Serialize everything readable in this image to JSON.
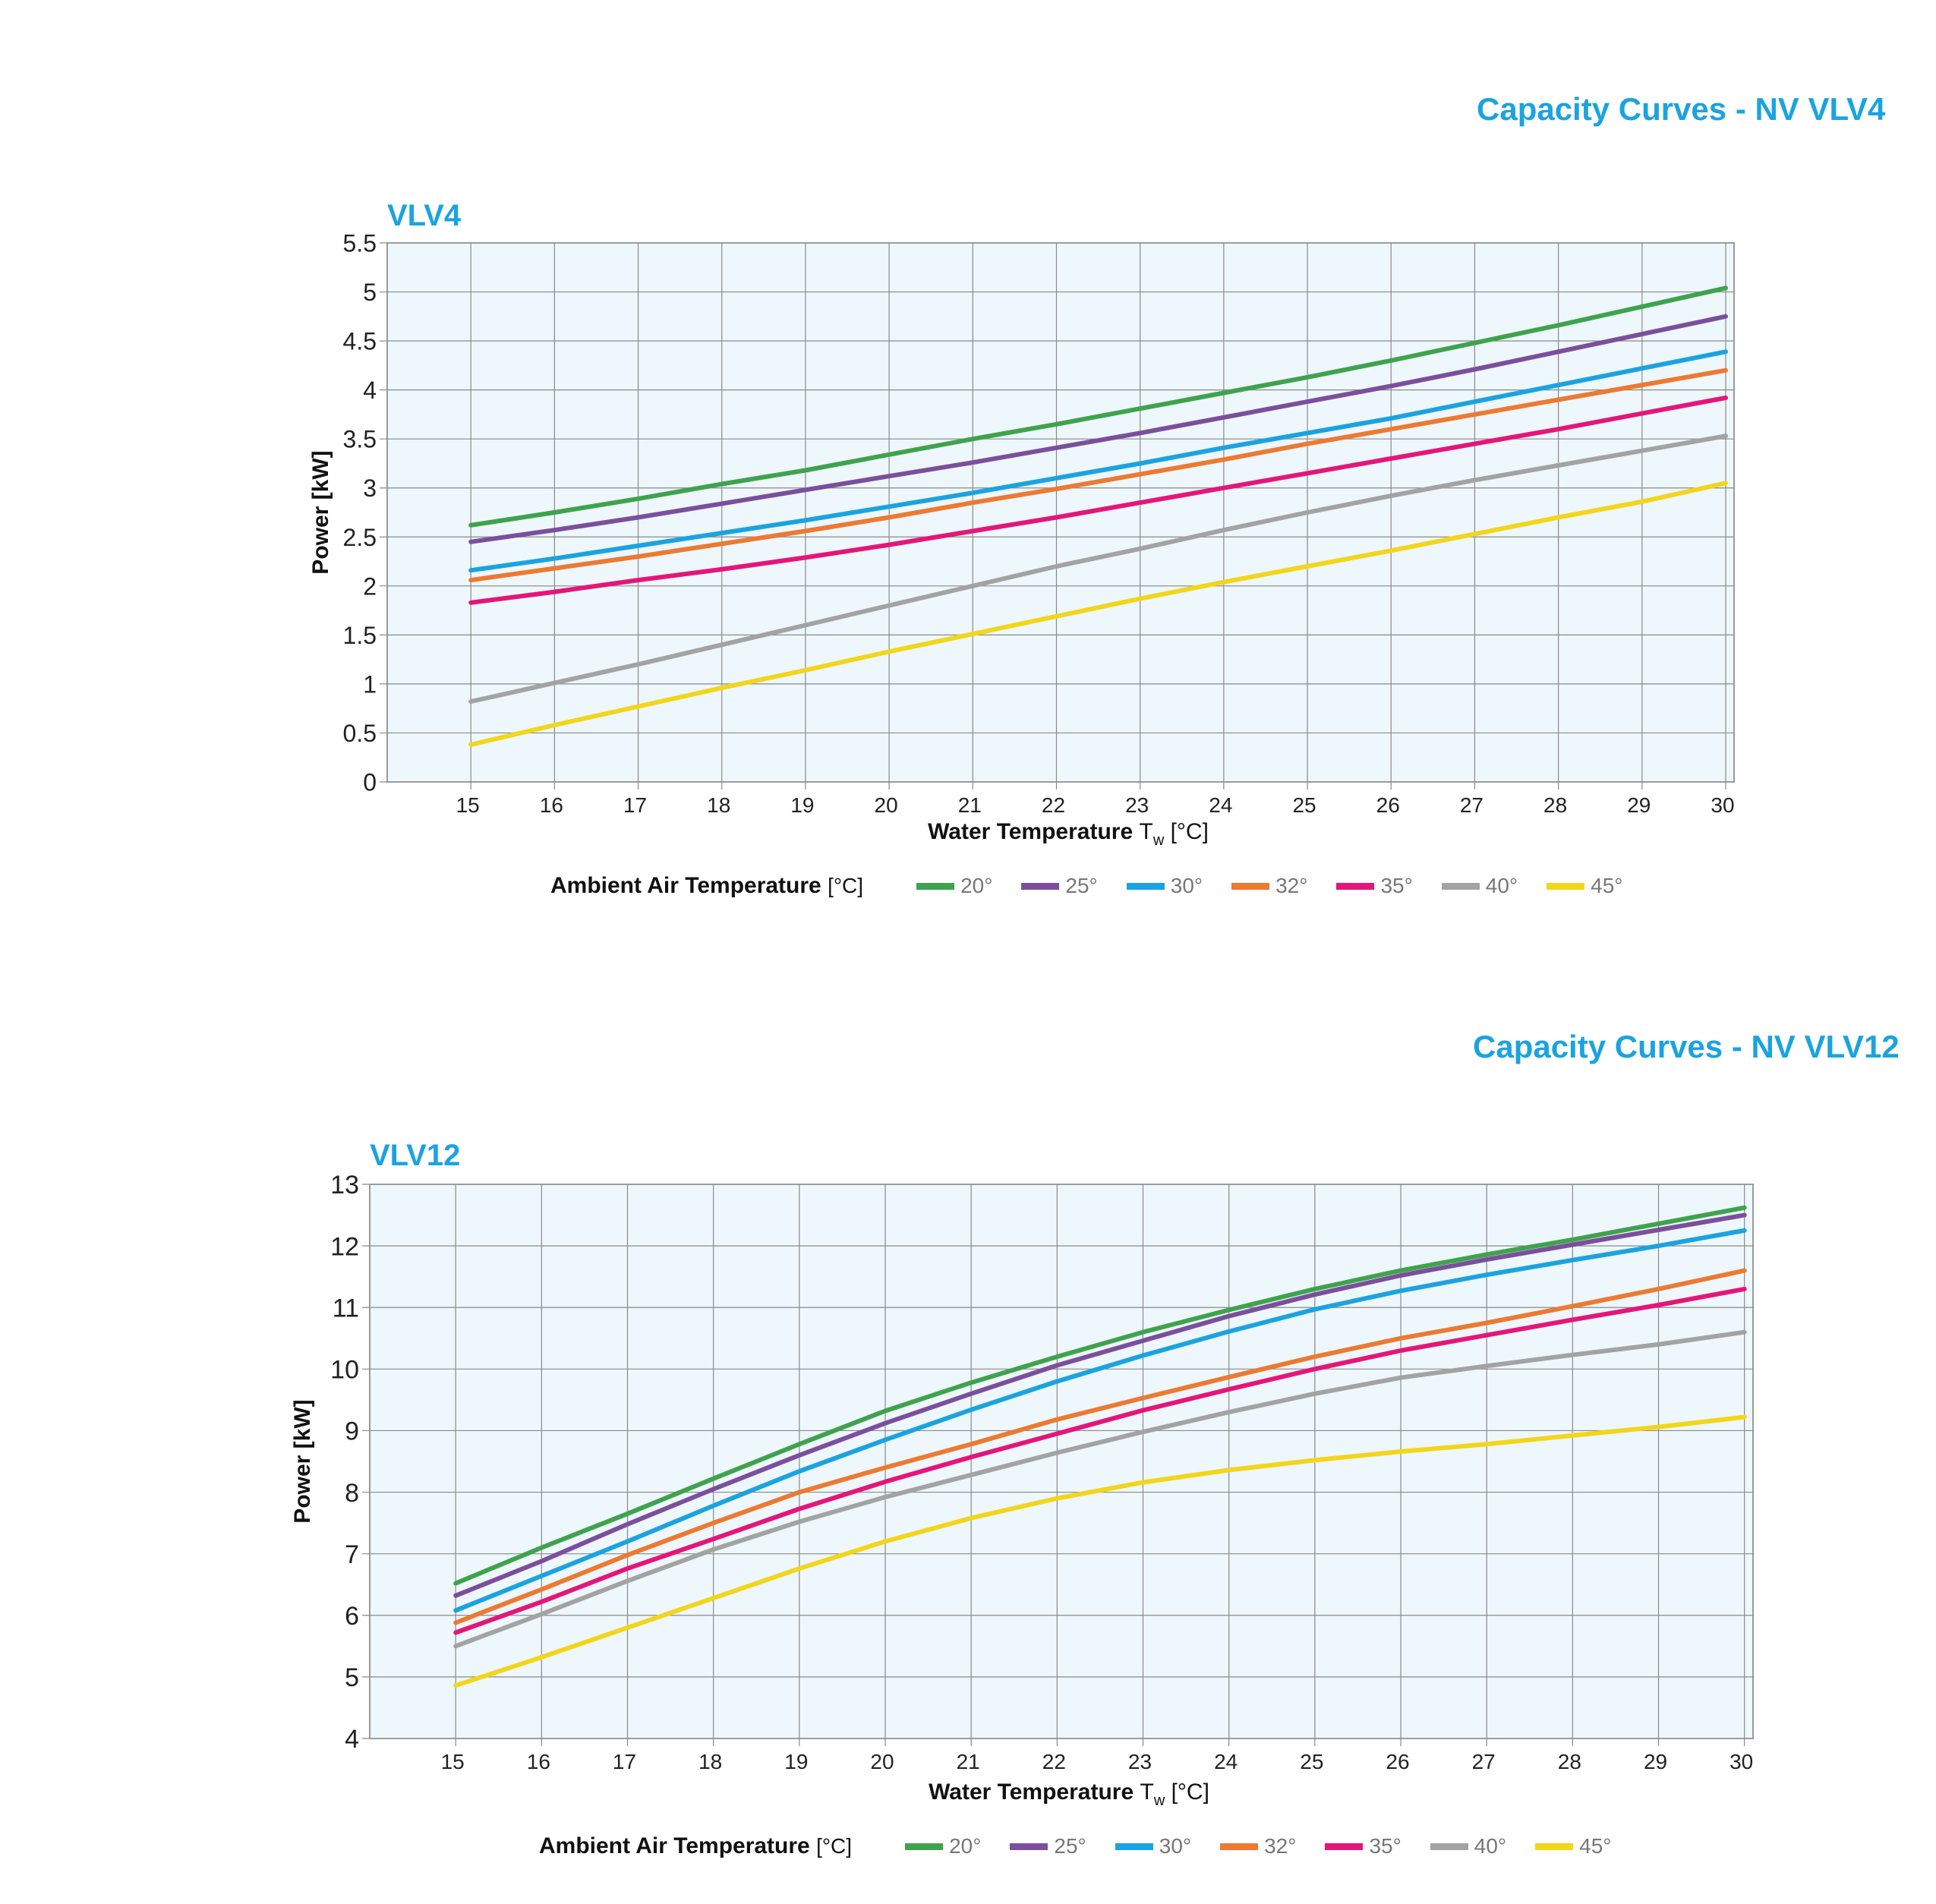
{
  "chart_data": [
    {
      "type": "line",
      "section_title": "Capacity Curves - NV VLV4",
      "title": "VLV4",
      "xlabel": "Water Temperature",
      "xlabel_symbol": "T",
      "xlabel_sub": "w",
      "xlabel_unit": "[°C]",
      "ylabel": "Power [kW]",
      "x": [
        15,
        16,
        17,
        18,
        19,
        20,
        21,
        22,
        23,
        24,
        25,
        26,
        27,
        28,
        29,
        30
      ],
      "xlim": [
        14,
        30.1
      ],
      "ylim": [
        0,
        5.5
      ],
      "yticks": [
        0,
        0.5,
        1,
        1.5,
        2,
        2.5,
        3,
        3.5,
        4,
        4.5,
        5,
        5.5
      ],
      "ytick_labels": [
        "0",
        "0.5",
        "1",
        "1.5",
        "2",
        "2.5",
        "3",
        "3.5",
        "4",
        "4.5",
        "5",
        "5.5"
      ],
      "grid": true,
      "legend_title": "Ambient Air Temperature",
      "legend_unit": "[°C]",
      "legend_position": "bottom",
      "series": [
        {
          "name": "20°",
          "color": "#3fa34d",
          "values": [
            2.62,
            2.75,
            2.89,
            3.04,
            3.18,
            3.34,
            3.5,
            3.65,
            3.81,
            3.97,
            4.13,
            4.3,
            4.48,
            4.66,
            4.85,
            5.04
          ]
        },
        {
          "name": "25°",
          "color": "#7b4f9d",
          "values": [
            2.45,
            2.57,
            2.7,
            2.84,
            2.98,
            3.12,
            3.26,
            3.41,
            3.56,
            3.72,
            3.88,
            4.04,
            4.21,
            4.39,
            4.57,
            4.75
          ]
        },
        {
          "name": "30°",
          "color": "#1ba3e0",
          "values": [
            2.16,
            2.28,
            2.41,
            2.54,
            2.67,
            2.81,
            2.95,
            3.1,
            3.25,
            3.41,
            3.56,
            3.71,
            3.88,
            4.05,
            4.22,
            4.39
          ]
        },
        {
          "name": "32°",
          "color": "#ec7a32",
          "values": [
            2.06,
            2.18,
            2.3,
            2.43,
            2.56,
            2.7,
            2.85,
            2.99,
            3.14,
            3.29,
            3.45,
            3.6,
            3.75,
            3.9,
            4.05,
            4.2
          ]
        },
        {
          "name": "35°",
          "color": "#e5157a",
          "values": [
            1.83,
            1.94,
            2.06,
            2.17,
            2.29,
            2.42,
            2.56,
            2.7,
            2.85,
            3.0,
            3.15,
            3.3,
            3.45,
            3.6,
            3.76,
            3.92
          ]
        },
        {
          "name": "40°",
          "color": "#a3a3a3",
          "values": [
            0.82,
            1.01,
            1.2,
            1.4,
            1.6,
            1.8,
            2.0,
            2.2,
            2.38,
            2.57,
            2.75,
            2.92,
            3.08,
            3.23,
            3.38,
            3.53
          ]
        },
        {
          "name": "45°",
          "color": "#f2d61a",
          "values": [
            0.38,
            0.58,
            0.77,
            0.96,
            1.14,
            1.33,
            1.51,
            1.69,
            1.87,
            2.04,
            2.2,
            2.36,
            2.53,
            2.7,
            2.86,
            3.05
          ]
        }
      ]
    },
    {
      "type": "line",
      "section_title": "Capacity Curves - NV VLV12",
      "title": "VLV12",
      "xlabel": "Water Temperature",
      "xlabel_symbol": "T",
      "xlabel_sub": "w",
      "xlabel_unit": "[°C]",
      "ylabel": "Power [kW]",
      "x": [
        15,
        16,
        17,
        18,
        19,
        20,
        21,
        22,
        23,
        24,
        25,
        26,
        27,
        28,
        29,
        30
      ],
      "xlim": [
        14,
        30.1
      ],
      "ylim": [
        4,
        13
      ],
      "yticks": [
        4,
        5,
        6,
        7,
        8,
        9,
        10,
        11,
        12,
        13
      ],
      "ytick_labels": [
        "4",
        "5",
        "6",
        "7",
        "8",
        "9",
        "10",
        "11",
        "12",
        "13"
      ],
      "grid": true,
      "legend_title": "Ambient Air Temperature",
      "legend_unit": "[°C]",
      "legend_position": "bottom",
      "series": [
        {
          "name": "20°",
          "color": "#3fa34d",
          "values": [
            6.52,
            7.1,
            7.65,
            8.22,
            8.78,
            9.32,
            9.78,
            10.2,
            10.6,
            10.96,
            11.3,
            11.6,
            11.86,
            12.1,
            12.36,
            12.62
          ]
        },
        {
          "name": "25°",
          "color": "#7b4f9d",
          "values": [
            6.32,
            6.88,
            7.48,
            8.05,
            8.6,
            9.12,
            9.6,
            10.06,
            10.46,
            10.86,
            11.21,
            11.52,
            11.78,
            12.02,
            12.26,
            12.5
          ]
        },
        {
          "name": "30°",
          "color": "#1ba3e0",
          "values": [
            6.08,
            6.64,
            7.2,
            7.78,
            8.34,
            8.85,
            9.34,
            9.8,
            10.22,
            10.61,
            10.97,
            11.27,
            11.53,
            11.77,
            12.0,
            12.25
          ]
        },
        {
          "name": "32°",
          "color": "#ec7a32",
          "values": [
            5.88,
            6.42,
            6.98,
            7.5,
            8.0,
            8.4,
            8.78,
            9.18,
            9.53,
            9.87,
            10.2,
            10.5,
            10.75,
            11.02,
            11.3,
            11.6
          ]
        },
        {
          "name": "35°",
          "color": "#e5157a",
          "values": [
            5.72,
            6.22,
            6.76,
            7.24,
            7.73,
            8.17,
            8.57,
            8.95,
            9.33,
            9.67,
            10.0,
            10.3,
            10.55,
            10.8,
            11.04,
            11.3
          ]
        },
        {
          "name": "40°",
          "color": "#a3a3a3",
          "values": [
            5.5,
            6.02,
            6.56,
            7.07,
            7.52,
            7.92,
            8.28,
            8.64,
            8.98,
            9.3,
            9.6,
            9.86,
            10.05,
            10.23,
            10.4,
            10.6
          ]
        },
        {
          "name": "45°",
          "color": "#f2d61a",
          "values": [
            4.86,
            5.32,
            5.8,
            6.28,
            6.76,
            7.2,
            7.58,
            7.9,
            8.16,
            8.36,
            8.52,
            8.66,
            8.78,
            8.92,
            9.06,
            9.22
          ]
        }
      ]
    }
  ]
}
